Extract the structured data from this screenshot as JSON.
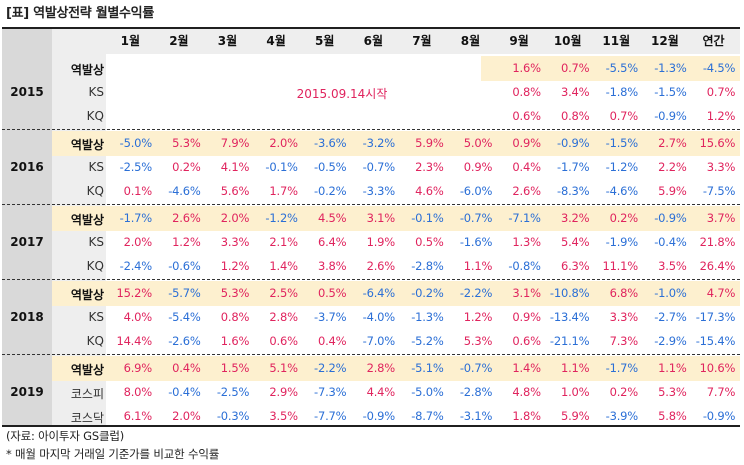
{
  "title": "[표] 역발상전략 월별수익률",
  "headers": [
    "1월",
    "2월",
    "3월",
    "4월",
    "5월",
    "6월",
    "7월",
    "8월",
    "9월",
    "10월",
    "11월",
    "12월",
    "연간"
  ],
  "note_2015": "2015.09.14시작",
  "blocks": [
    {
      "year": "2015",
      "rows": [
        {
          "label": "역발상",
          "values": [
            "",
            "",
            "",
            "",
            "",
            "",
            "",
            "",
            "1.6%",
            "0.7%",
            "-5.5%",
            "-1.3%",
            "-4.5%"
          ]
        },
        {
          "label": "KS",
          "values": [
            "",
            "",
            "",
            "",
            "",
            "",
            "",
            "",
            "0.8%",
            "3.4%",
            "-1.8%",
            "-1.5%",
            "0.7%"
          ]
        },
        {
          "label": "KQ",
          "values": [
            "",
            "",
            "",
            "",
            "",
            "",
            "",
            "",
            "0.6%",
            "0.8%",
            "0.7%",
            "-0.9%",
            "1.2%"
          ]
        }
      ]
    },
    {
      "year": "2016",
      "rows": [
        {
          "label": "역발상",
          "values": [
            "-5.0%",
            "5.3%",
            "7.9%",
            "2.0%",
            "-3.6%",
            "-3.2%",
            "5.9%",
            "5.0%",
            "0.9%",
            "-0.9%",
            "-1.5%",
            "2.7%",
            "15.6%"
          ]
        },
        {
          "label": "KS",
          "values": [
            "-2.5%",
            "0.2%",
            "4.1%",
            "-0.1%",
            "-0.5%",
            "-0.7%",
            "2.3%",
            "0.9%",
            "0.4%",
            "-1.7%",
            "-1.2%",
            "2.2%",
            "3.3%"
          ]
        },
        {
          "label": "KQ",
          "values": [
            "0.1%",
            "-4.6%",
            "5.6%",
            "1.7%",
            "-0.2%",
            "-3.3%",
            "4.6%",
            "-6.0%",
            "2.6%",
            "-8.3%",
            "-4.6%",
            "5.9%",
            "-7.5%"
          ]
        }
      ]
    },
    {
      "year": "2017",
      "rows": [
        {
          "label": "역발상",
          "values": [
            "-1.7%",
            "2.6%",
            "2.0%",
            "-1.2%",
            "4.5%",
            "3.1%",
            "-0.1%",
            "-0.7%",
            "-7.1%",
            "3.2%",
            "0.2%",
            "-0.9%",
            "3.7%"
          ]
        },
        {
          "label": "KS",
          "values": [
            "2.0%",
            "1.2%",
            "3.3%",
            "2.1%",
            "6.4%",
            "1.9%",
            "0.5%",
            "-1.6%",
            "1.3%",
            "5.4%",
            "-1.9%",
            "-0.4%",
            "21.8%"
          ]
        },
        {
          "label": "KQ",
          "values": [
            "-2.4%",
            "-0.6%",
            "1.2%",
            "1.4%",
            "3.8%",
            "2.6%",
            "-2.8%",
            "1.1%",
            "-0.8%",
            "6.3%",
            "11.1%",
            "3.5%",
            "26.4%"
          ]
        }
      ]
    },
    {
      "year": "2018",
      "rows": [
        {
          "label": "역발상",
          "values": [
            "15.2%",
            "-5.7%",
            "5.3%",
            "2.5%",
            "0.5%",
            "-6.4%",
            "-0.2%",
            "-2.2%",
            "3.1%",
            "-10.8%",
            "6.8%",
            "-1.0%",
            "4.7%"
          ]
        },
        {
          "label": "KS",
          "values": [
            "4.0%",
            "-5.4%",
            "0.8%",
            "2.8%",
            "-3.7%",
            "-4.0%",
            "-1.3%",
            "1.2%",
            "0.9%",
            "-13.4%",
            "3.3%",
            "-2.7%",
            "-17.3%"
          ]
        },
        {
          "label": "KQ",
          "values": [
            "14.4%",
            "-2.6%",
            "1.6%",
            "0.6%",
            "0.4%",
            "-7.0%",
            "-5.2%",
            "5.3%",
            "0.6%",
            "-21.1%",
            "7.3%",
            "-2.9%",
            "-15.4%"
          ]
        }
      ]
    },
    {
      "year": "2019",
      "rows": [
        {
          "label": "역발상",
          "values": [
            "6.9%",
            "0.4%",
            "1.5%",
            "5.1%",
            "-2.2%",
            "2.8%",
            "-5.1%",
            "-0.7%",
            "1.4%",
            "1.1%",
            "-1.7%",
            "1.1%",
            "10.6%"
          ]
        },
        {
          "label": "코스피",
          "values": [
            "8.0%",
            "-0.4%",
            "-2.5%",
            "2.9%",
            "-7.3%",
            "4.4%",
            "-5.0%",
            "-2.8%",
            "4.8%",
            "1.0%",
            "0.2%",
            "5.3%",
            "7.7%"
          ]
        },
        {
          "label": "코스닥",
          "values": [
            "6.1%",
            "2.0%",
            "-0.3%",
            "3.5%",
            "-7.7%",
            "-0.9%",
            "-8.7%",
            "-3.1%",
            "1.8%",
            "5.9%",
            "-3.9%",
            "5.8%",
            "-0.9%"
          ]
        }
      ]
    }
  ],
  "footnotes": [
    "(자료: 아이투자 GS클럽)",
    "* 매월 마지막 거래일 기준가를 비교한 수익률"
  ],
  "colors": {
    "positive": "#e0245e",
    "negative": "#2b6fd6",
    "highlight": "#fdf0cf",
    "header_bg": "#eeeeee",
    "year_bg": "#d9d9d9"
  }
}
